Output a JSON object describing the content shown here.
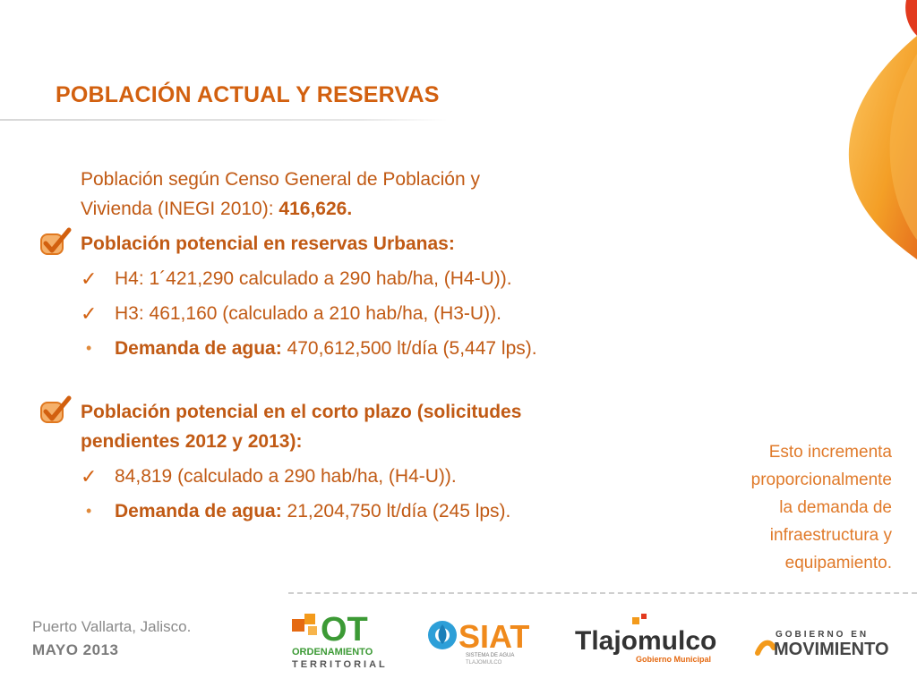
{
  "slide": {
    "title": "POBLACIÓN ACTUAL Y RESERVAS",
    "censo_line1": "Población según Censo General de Población y",
    "censo_line2_prefix": "Vivienda (INEGI 2010): ",
    "censo_value": "416,626.",
    "urban_heading": "Población potencial en reservas Urbanas:",
    "urban_h4": "H4: 1´421,290 calculado a 290 hab/ha, (H4-U)).",
    "urban_h3": "H3:  461,160 (calculado a 210 hab/ha, (H3-U)).",
    "urban_demand_label": "Demanda de agua:",
    "urban_demand_value": " 470,612,500 lt/día (5,447 lps).",
    "short_heading_line1": "Población potencial en el corto plazo (solicitudes",
    "short_heading_line2": "pendientes 2012 y 2013):",
    "short_h4": "84,819 (calculado a 290 hab/ha, (H4-U)).",
    "short_demand_label": "Demanda de agua:",
    "short_demand_value": " 21,204,750 lt/día (245 lps).",
    "aside_lines": [
      "Esto incrementa",
      "proporcionalmente",
      "la demanda de",
      "infraestructura y",
      "equipamiento."
    ]
  },
  "footer": {
    "location": "Puerto Vallarta, Jalisco.",
    "date": "MAYO 2013",
    "logos": {
      "ot_main": "OT",
      "ot_line1": "ORDENAMIENTO",
      "ot_line2": "TERRITORIAL",
      "siat_main": "SIAT",
      "siat_sub1": "SISTEMA DE AGUA",
      "siat_sub2": "TLAJOMULCO",
      "tla_main": "Tlajomulco",
      "tla_sub": "Gobierno Municipal",
      "gob_line1": "GOBIERNO EN",
      "gob_line2": "MOVIMIENTO"
    }
  },
  "colors": {
    "accent": "#d2600f",
    "text": "#c15a14",
    "aside": "#e07a2a",
    "flame_red": "#e23a1e",
    "flame_orange": "#f39a1b"
  },
  "icons": {
    "section_check": "checkmark-badge-icon",
    "sub_check": "checkmark-icon",
    "bullet": "bullet-icon"
  }
}
